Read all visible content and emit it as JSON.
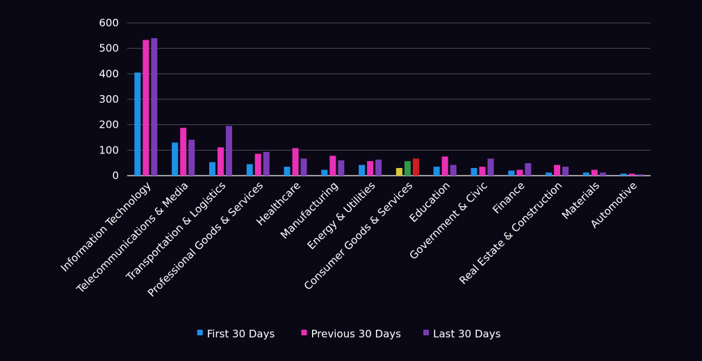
{
  "chart_data": {
    "type": "bar",
    "categories": [
      "Information Technology",
      "Telecommunications & Media",
      "Transportation & Logistics",
      "Professional Goods & Services",
      "Healthcare",
      "Manufacturing",
      "Energy & Utilities",
      "Consumer Goods & Services",
      "Education",
      "Government & Civic",
      "Finance",
      "Real Estate & Construction",
      "Materials",
      "Automotive"
    ],
    "series": [
      {
        "name": "First 30 Days",
        "color": "#1e90e8",
        "values": [
          405,
          130,
          53,
          45,
          35,
          23,
          42,
          30,
          35,
          30,
          20,
          12,
          12,
          8
        ]
      },
      {
        "name": "Previous 30 Days",
        "color": "#e930b6",
        "values": [
          533,
          188,
          111,
          86,
          108,
          78,
          57,
          57,
          75,
          35,
          23,
          42,
          23,
          8
        ]
      },
      {
        "name": "Last 30 Days",
        "color": "#7a3cb5",
        "values": [
          540,
          141,
          195,
          93,
          67,
          60,
          63,
          67,
          42,
          67,
          49,
          35,
          12,
          5
        ]
      }
    ],
    "bar_color_overrides": [
      {
        "category_index": 7,
        "series_index": 0,
        "color": "#d8c93a"
      },
      {
        "category_index": 7,
        "series_index": 1,
        "color": "#2f9a4a"
      },
      {
        "category_index": 7,
        "series_index": 2,
        "color": "#d11c24"
      }
    ],
    "y_ticks": [
      "0",
      "100",
      "200",
      "300",
      "400",
      "500",
      "600"
    ],
    "ylim": [
      0,
      600
    ],
    "grid": true,
    "legend_position": "bottom",
    "background_color": "#0b0816",
    "grid_color": "#4d4a57",
    "text_color": "#ffffff"
  }
}
